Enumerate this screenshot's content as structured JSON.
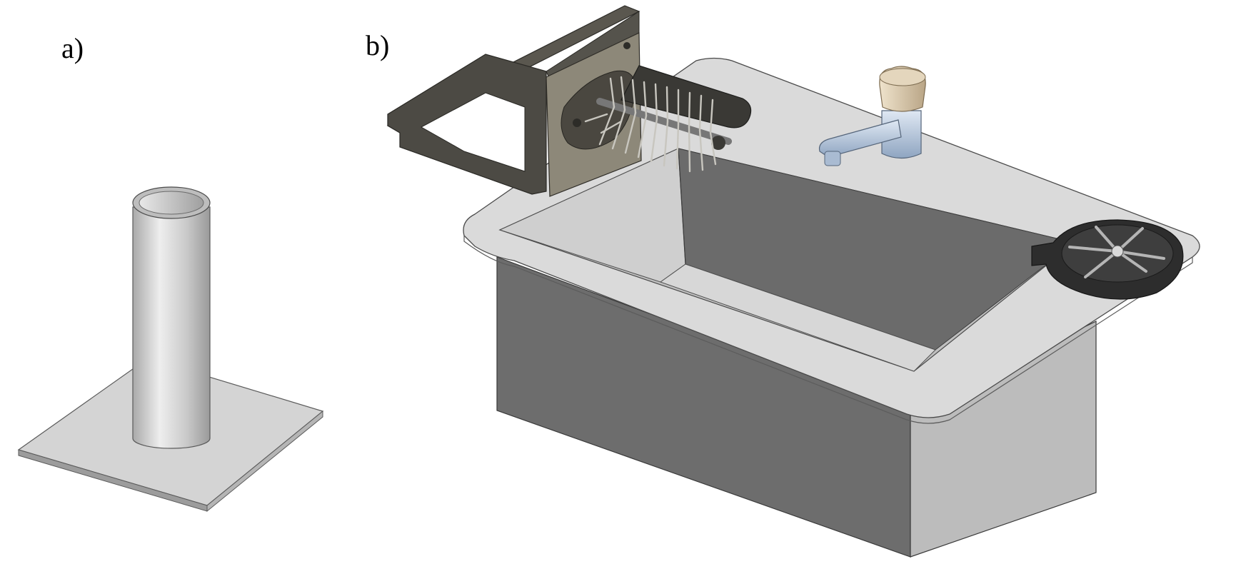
{
  "panels": {
    "a": {
      "label": "a)"
    },
    "b": {
      "label": "b)"
    }
  },
  "colors": {
    "background": "#ffffff",
    "metal_light": "#d9d9d9",
    "metal_mid": "#bdbdbd",
    "sink_dark": "#6b6b6b",
    "bracket": "#4a4842",
    "plate": "#8a8578",
    "knob": "#d8c8ac",
    "faucet": "#b8c8dc",
    "drain": "#2f2f2f"
  },
  "icons": [
    "tube-stand-3d",
    "sink-assembly-3d",
    "brush-roller",
    "faucet",
    "drain-rack"
  ]
}
